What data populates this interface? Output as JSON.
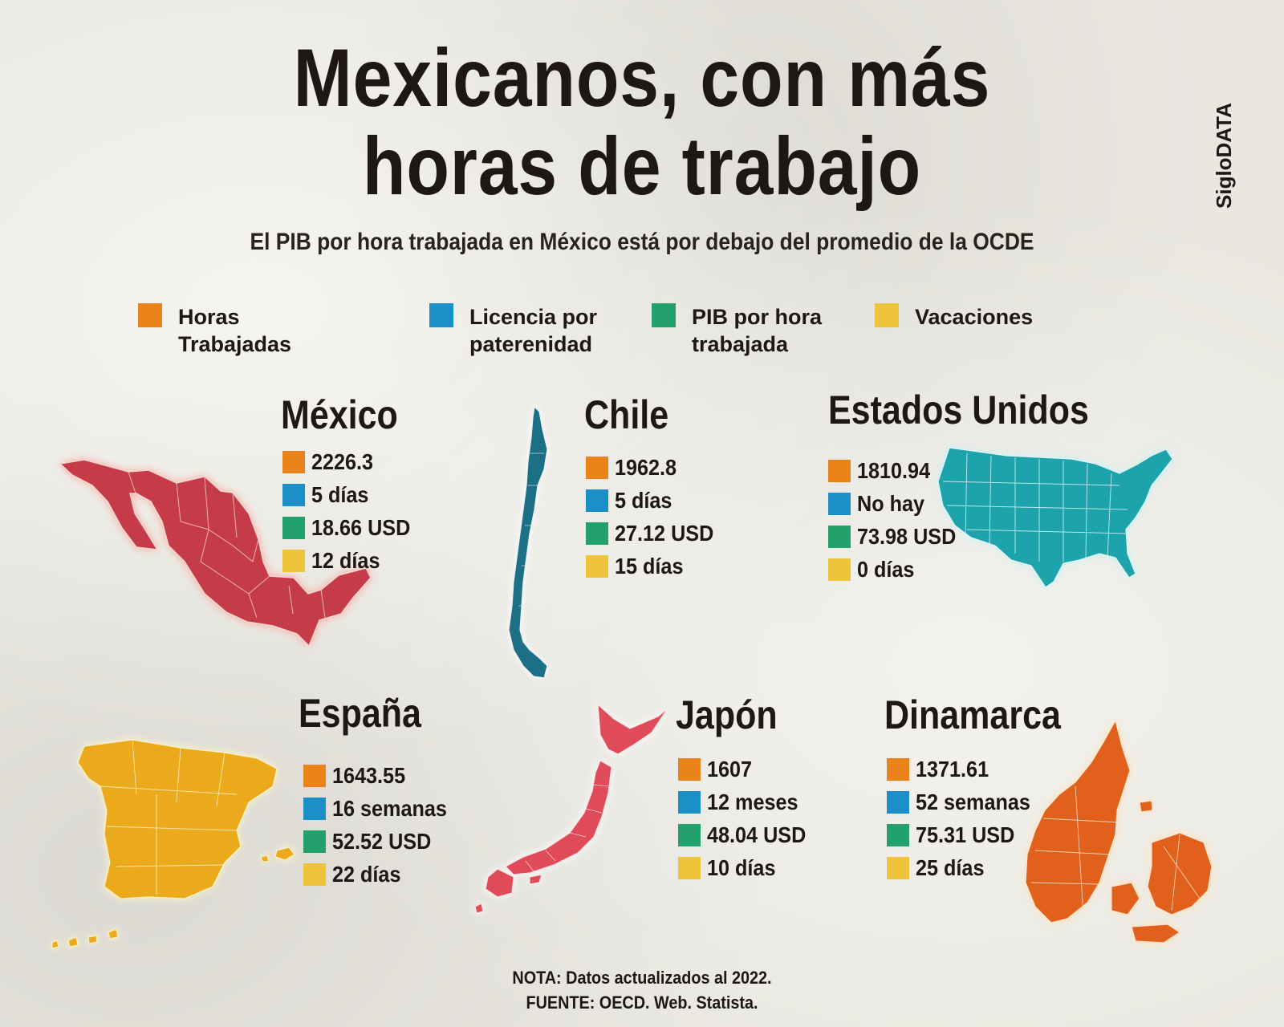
{
  "title_line1": "Mexicanos, con más",
  "title_line2": "horas de trabajo",
  "subtitle": "El PIB por hora trabajada en México está por debajo del promedio de la OCDE",
  "brand": "SigloDATA",
  "colors": {
    "horas": "#e9831a",
    "licencia": "#1c8fc9",
    "pib": "#22a26a",
    "vacaciones": "#eec53a"
  },
  "legend": [
    {
      "label": "Horas Trabajadas",
      "color": "#e9831a"
    },
    {
      "label": "Licencia por paterenidad",
      "color": "#1c8fc9"
    },
    {
      "label": "PIB por hora trabajada",
      "color": "#22a26a"
    },
    {
      "label": "Vacaciones",
      "color": "#eec53a"
    }
  ],
  "countries": {
    "mexico": {
      "name": "México",
      "map_color": "#c53b46",
      "horas": "2226.3",
      "licencia": "5 días",
      "pib": "18.66 USD",
      "vacaciones": "12 días"
    },
    "chile": {
      "name": "Chile",
      "map_color": "#1f6f86",
      "horas": "1962.8",
      "licencia": "5 días",
      "pib": "27.12 USD",
      "vacaciones": "15 días"
    },
    "usa": {
      "name": "Estados Unidos",
      "map_color": "#1aa3ab",
      "horas": "1810.94",
      "licencia": "No hay",
      "pib": "73.98 USD",
      "vacaciones": "0 días"
    },
    "spain": {
      "name": "España",
      "map_color": "#ebaa1f",
      "horas": "1643.55",
      "licencia": "16 semanas",
      "pib": "52.52 USD",
      "vacaciones": "22 días"
    },
    "japan": {
      "name": "Japón",
      "map_color": "#e04c5a",
      "horas": "1607",
      "licencia": "12 meses",
      "pib": "48.04 USD",
      "vacaciones": "10 días"
    },
    "denmark": {
      "name": "Dinamarca",
      "map_color": "#e0601a",
      "horas": "1371.61",
      "licencia": "52 semanas",
      "pib": "75.31 USD",
      "vacaciones": "25 días"
    }
  },
  "note_line1": "NOTA: Datos actualizados al 2022.",
  "note_line2": "FUENTE: OECD. Web. Statista."
}
